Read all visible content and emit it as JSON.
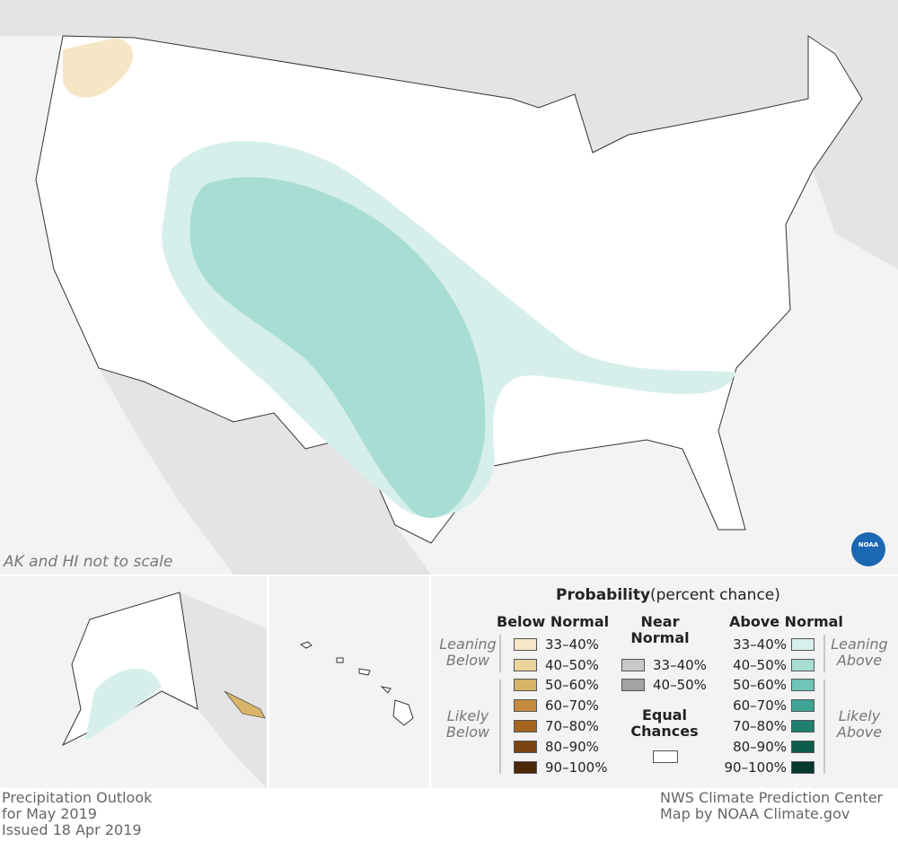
{
  "map": {
    "note": "AK and HI not to scale",
    "logo": "NOAA"
  },
  "legend": {
    "title": "Probability",
    "subtitle": "(percent chance)",
    "below": {
      "heading": "Below Normal",
      "leaning": "Leaning Below",
      "likely": "Likely Below",
      "items": [
        {
          "label": "33–40%",
          "color": "#f5e7c6"
        },
        {
          "label": "40–50%",
          "color": "#ebd49e"
        },
        {
          "label": "50–60%",
          "color": "#d8b46a"
        },
        {
          "label": "60–70%",
          "color": "#c48b3e"
        },
        {
          "label": "70–80%",
          "color": "#a6651f"
        },
        {
          "label": "80–90%",
          "color": "#7a4510"
        },
        {
          "label": "90–100%",
          "color": "#4a2806"
        }
      ]
    },
    "near": {
      "heading": "Near Normal",
      "items": [
        {
          "label": "33–40%",
          "color": "#c8c8c8"
        },
        {
          "label": "40–50%",
          "color": "#a2a2a2"
        }
      ]
    },
    "equal": {
      "heading": "Equal Chances",
      "color": "#ffffff"
    },
    "above": {
      "heading": "Above Normal",
      "leaning": "Leaning Above",
      "likely": "Likely Above",
      "items": [
        {
          "label": "33–40%",
          "color": "#d6efeb"
        },
        {
          "label": "40–50%",
          "color": "#a8ddd4"
        },
        {
          "label": "50–60%",
          "color": "#6fc4b6"
        },
        {
          "label": "60–70%",
          "color": "#3fa596"
        },
        {
          "label": "70–80%",
          "color": "#1f8070"
        },
        {
          "label": "80–90%",
          "color": "#0e5c4c"
        },
        {
          "label": "90–100%",
          "color": "#06382e"
        }
      ]
    }
  },
  "footer": {
    "left": [
      "Precipitation Outlook",
      "for May 2019",
      "Issued 18 Apr 2019"
    ],
    "right": [
      "NWS Climate Prediction Center",
      "Map by NOAA Climate.gov"
    ]
  }
}
